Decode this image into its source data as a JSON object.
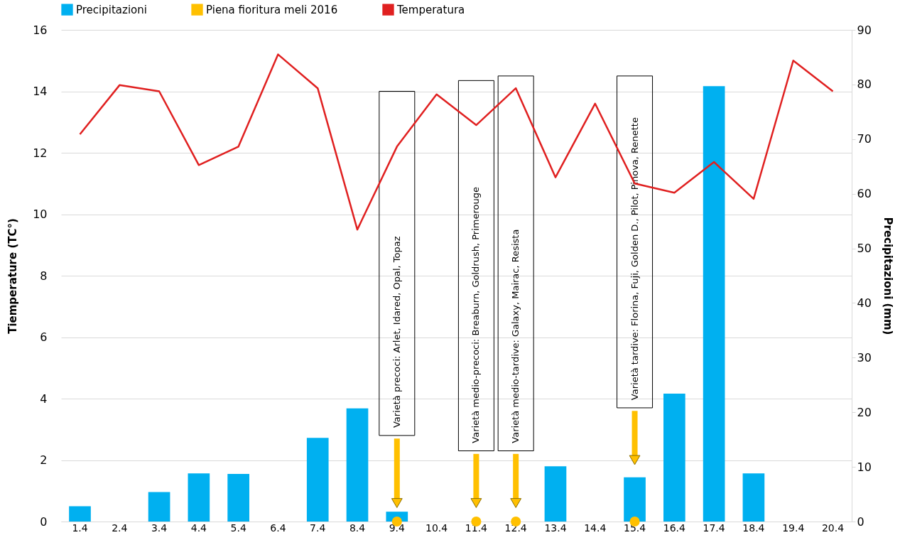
{
  "chart_data": {
    "type": "bar",
    "categories": [
      "1.4",
      "2.4",
      "3.4",
      "4.4",
      "5.4",
      "6.4",
      "7.4",
      "8.4",
      "9.4",
      "10.4",
      "11.4",
      "12.4",
      "13.4",
      "14.4",
      "15.4",
      "16.4",
      "17.4",
      "18.4",
      "19.4",
      "20.4"
    ],
    "series": [
      {
        "name": "Precipitazioni",
        "axis": "y2",
        "color": "#00b0f0",
        "values": [
          2.8,
          0,
          5.4,
          8.8,
          8.7,
          0,
          15.3,
          20.7,
          1.8,
          0,
          0,
          0,
          10.1,
          0,
          8.1,
          23.4,
          79.7,
          8.8,
          0,
          0
        ]
      },
      {
        "name": "Piena fioritura meli 2016",
        "type": "scatter",
        "color": "#ffc000",
        "x": [
          "9.4",
          "11.4",
          "12.4",
          "15.4"
        ],
        "values": [
          0,
          0,
          0,
          0
        ]
      },
      {
        "name": "Temperatura",
        "type": "line",
        "color": "#e02020",
        "values": [
          12.6,
          14.2,
          14.0,
          11.6,
          12.2,
          15.2,
          14.1,
          9.5,
          12.2,
          13.9,
          12.9,
          14.1,
          11.2,
          13.6,
          11.0,
          10.7,
          11.7,
          10.5,
          15.0,
          14.0
        ]
      }
    ],
    "ylabel": "Tiemperature (TC°)",
    "y2label": "Precipitazioni (mm)",
    "ylim": [
      0,
      16
    ],
    "yticks": [
      0,
      2,
      4,
      6,
      8,
      10,
      12,
      14,
      16
    ],
    "y2lim": [
      0,
      90
    ],
    "y2ticks": [
      0,
      10,
      20,
      30,
      40,
      50,
      60,
      70,
      80,
      90
    ],
    "grid": "y",
    "legend": "top",
    "line_style": "solid",
    "annotations": [
      "Varietà precoci: Arlet, Idared, Opal, Topaz",
      "Varietà medio-precoci: Breaburn, Goldrush, Primerouge",
      "Varietà medio-tardive: Galaxy, Mairac, Resista",
      "Varietà tardive: Florina, Fuji, Golden D., Pilot, Pinova, Renette"
    ]
  }
}
